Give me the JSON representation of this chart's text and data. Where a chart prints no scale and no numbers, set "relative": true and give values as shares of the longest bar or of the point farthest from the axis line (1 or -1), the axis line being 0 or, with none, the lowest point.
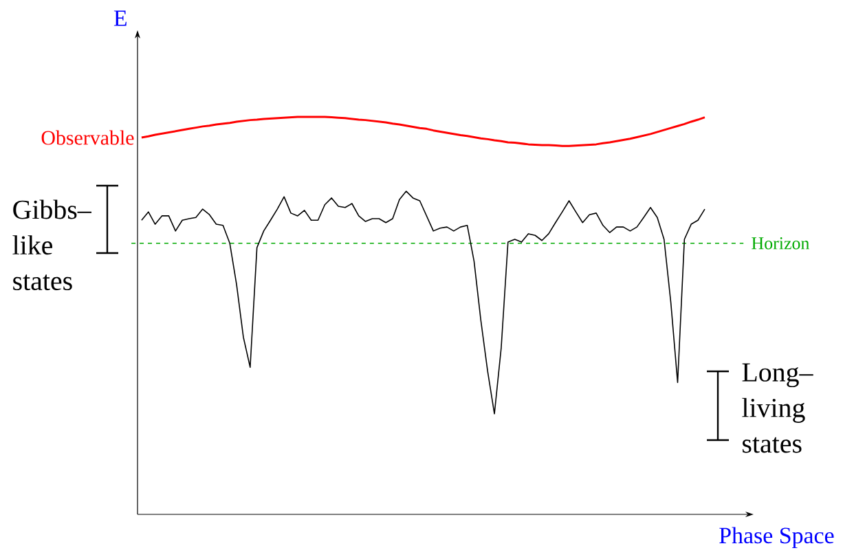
{
  "chart_data": {
    "type": "line",
    "relative": true,
    "xlabel": "Phase Space",
    "ylabel": "E",
    "categories": [
      null,
      null,
      null,
      null,
      null,
      null,
      null,
      null,
      null,
      null,
      null,
      null,
      null,
      null,
      null,
      null,
      null,
      null,
      null,
      null,
      null,
      null,
      null,
      null,
      null,
      null,
      null,
      null,
      null,
      null,
      null,
      null,
      null,
      null,
      null,
      null,
      null,
      null,
      null,
      null,
      null,
      null,
      null,
      null,
      null,
      null,
      null,
      null,
      null,
      null,
      null,
      null,
      null,
      null,
      null,
      null,
      null,
      null,
      null,
      null,
      null,
      null,
      null,
      null,
      null,
      null,
      null,
      null,
      null,
      null,
      null,
      null,
      null,
      null,
      null,
      null,
      null,
      null,
      null,
      null,
      null,
      null,
      null,
      null
    ],
    "series": [
      {
        "name": "Observable",
        "color": "#ff0000",
        "values": [
          0.948,
          0.951,
          0.955,
          0.958,
          0.961,
          0.964,
          0.967,
          0.97,
          0.973,
          0.976,
          0.978,
          0.981,
          0.983,
          0.985,
          0.988,
          0.99,
          0.992,
          0.993,
          0.995,
          0.996,
          0.997,
          0.998,
          0.999,
          1,
          1,
          1,
          1,
          1,
          0.999,
          0.998,
          0.997,
          0.995,
          0.993,
          0.992,
          0.99,
          0.988,
          0.986,
          0.983,
          0.981,
          0.978,
          0.975,
          0.972,
          0.97,
          0.966,
          0.963,
          0.96,
          0.957,
          0.954,
          0.952,
          0.949,
          0.946,
          0.944,
          0.941,
          0.939,
          0.936,
          0.935,
          0.933,
          0.931,
          0.93,
          0.929,
          0.929,
          0.928,
          0.927,
          0.927,
          0.928,
          0.929,
          0.93,
          0.931,
          0.934,
          0.936,
          0.939,
          0.942,
          0.945,
          0.949,
          0.953,
          0.957,
          0.962,
          0.967,
          0.972,
          0.977,
          0.982,
          0.988,
          0.993,
          0.999
        ]
      },
      {
        "color": "#000000",
        "values": [
          0.74,
          0.761,
          0.73,
          0.751,
          0.751,
          0.713,
          0.74,
          0.744,
          0.747,
          0.768,
          0.754,
          0.73,
          0.727,
          0.682,
          0.578,
          0.446,
          0.37,
          0.671,
          0.713,
          0.74,
          0.768,
          0.799,
          0.758,
          0.751,
          0.765,
          0.74,
          0.74,
          0.779,
          0.796,
          0.775,
          0.772,
          0.782,
          0.751,
          0.737,
          0.744,
          0.744,
          0.734,
          0.744,
          0.792,
          0.813,
          0.796,
          0.789,
          0.751,
          0.713,
          0.72,
          0.723,
          0.713,
          0.723,
          0.727,
          0.637,
          0.488,
          0.36,
          0.253,
          0.419,
          0.685,
          0.692,
          0.685,
          0.706,
          0.702,
          0.689,
          0.706,
          0.734,
          0.761,
          0.789,
          0.761,
          0.734,
          0.754,
          0.758,
          0.727,
          0.709,
          0.723,
          0.723,
          0.713,
          0.723,
          0.747,
          0.772,
          0.747,
          0.692,
          0.533,
          0.332,
          0.692,
          0.73,
          0.74,
          0.768
        ]
      }
    ],
    "ref_lines": [
      {
        "axis": "y",
        "value": 0.682,
        "label": "Horizon",
        "color": "#00aa00",
        "line_style": "dashed"
      }
    ],
    "annotations": [
      "Gibbs–like states",
      "Long–living states"
    ]
  }
}
